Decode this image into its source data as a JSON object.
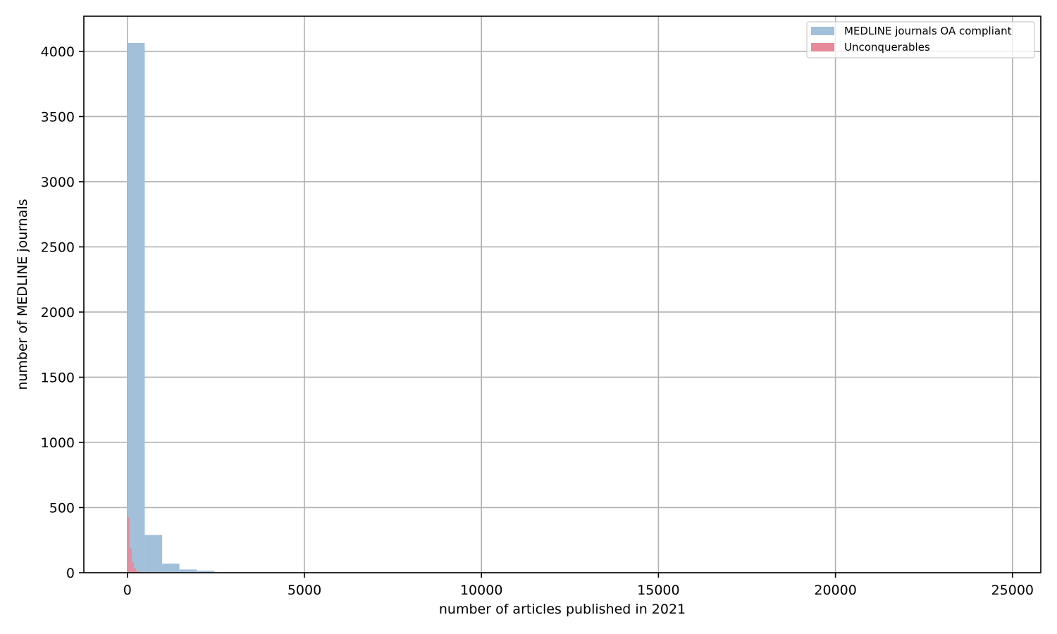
{
  "chart_data": {
    "type": "bar",
    "title": "",
    "xlabel": "number of articles published in 2021",
    "ylabel": "number of MEDLINE journals",
    "xlim": [
      -1230,
      25800
    ],
    "ylim": [
      0,
      4270
    ],
    "xticks": [
      0,
      5000,
      10000,
      15000,
      20000,
      25000
    ],
    "yticks": [
      0,
      500,
      1000,
      1500,
      2000,
      2500,
      3000,
      3500,
      4000
    ],
    "grid": true,
    "legend_position": "top-right",
    "series": [
      {
        "name": "MEDLINE journals OA compliant",
        "color": "#a3c0da",
        "bin_width": 490,
        "bins": [
          {
            "x0": 0,
            "x1": 490,
            "count": 4065
          },
          {
            "x0": 490,
            "x1": 980,
            "count": 290
          },
          {
            "x0": 980,
            "x1": 1470,
            "count": 70
          },
          {
            "x0": 1470,
            "x1": 1960,
            "count": 25
          },
          {
            "x0": 1960,
            "x1": 2450,
            "count": 15
          }
        ]
      },
      {
        "name": "Unconquerables",
        "color": "#e6899a",
        "bin_width": 60,
        "bins": [
          {
            "x0": 0,
            "x1": 60,
            "count": 425
          },
          {
            "x0": 60,
            "x1": 120,
            "count": 185
          },
          {
            "x0": 120,
            "x1": 180,
            "count": 80
          },
          {
            "x0": 180,
            "x1": 240,
            "count": 35
          },
          {
            "x0": 240,
            "x1": 300,
            "count": 15
          },
          {
            "x0": 300,
            "x1": 360,
            "count": 8
          },
          {
            "x0": 360,
            "x1": 420,
            "count": 5
          },
          {
            "x0": 420,
            "x1": 480,
            "count": 3
          },
          {
            "x0": 480,
            "x1": 540,
            "count": 2
          },
          {
            "x0": 540,
            "x1": 600,
            "count": 6
          },
          {
            "x0": 600,
            "x1": 660,
            "count": 2
          }
        ]
      }
    ]
  }
}
